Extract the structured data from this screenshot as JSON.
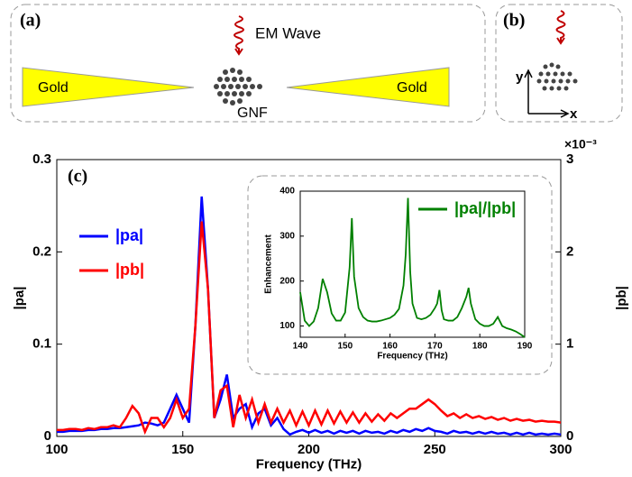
{
  "diagram": {
    "panel_a_label": "(a)",
    "em_wave": "EM Wave",
    "gold_left": "Gold",
    "gold_right": "Gold",
    "gnf": "GNF",
    "panel_b_label": "(b)",
    "axis_y": "y",
    "axis_x": "x"
  },
  "chart_data": [
    {
      "type": "line",
      "panel_label": "(c)",
      "xlabel": "Frequency (THz)",
      "ylabel": "|pa|",
      "y2label": "|pb|",
      "y2_multiplier": "×10⁻³",
      "xlim": [
        100,
        300
      ],
      "xticks": [
        100,
        150,
        200,
        250,
        300
      ],
      "ylim": [
        0,
        0.3
      ],
      "yticks": [
        0,
        0.1,
        0.2,
        0.3
      ],
      "y2lim": [
        0,
        3
      ],
      "y2ticks": [
        0,
        1,
        2,
        3
      ],
      "legend": "left",
      "x": [
        100,
        102.5,
        105,
        107.5,
        110,
        112.5,
        115,
        117.5,
        120,
        122.5,
        125,
        127.5,
        130,
        132.5,
        135,
        137.5,
        140,
        142.5,
        145,
        147.5,
        150,
        152.5,
        155,
        157.5,
        160,
        162.5,
        165,
        167.5,
        170,
        172.5,
        175,
        177.5,
        180,
        182.5,
        185,
        187.5,
        190,
        192.5,
        195,
        197.5,
        200,
        202.5,
        205,
        207.5,
        210,
        212.5,
        215,
        217.5,
        220,
        222.5,
        225,
        227.5,
        230,
        232.5,
        235,
        237.5,
        240,
        242.5,
        245,
        247.5,
        250,
        252.5,
        255,
        257.5,
        260,
        262.5,
        265,
        267.5,
        270,
        272.5,
        275,
        277.5,
        280,
        282.5,
        285,
        287.5,
        290,
        292.5,
        295,
        297.5,
        300
      ],
      "series": [
        {
          "name": "|pa|",
          "color": "#0000ff",
          "axis": "y",
          "values": [
            0.005,
            0.005,
            0.006,
            0.006,
            0.006,
            0.007,
            0.007,
            0.008,
            0.008,
            0.009,
            0.009,
            0.01,
            0.011,
            0.012,
            0.015,
            0.014,
            0.012,
            0.015,
            0.03,
            0.045,
            0.03,
            0.015,
            0.12,
            0.26,
            0.16,
            0.02,
            0.04,
            0.067,
            0.02,
            0.03,
            0.035,
            0.01,
            0.025,
            0.03,
            0.012,
            0.02,
            0.008,
            0.002,
            0.005,
            0.007,
            0.004,
            0.007,
            0.004,
            0.006,
            0.003,
            0.006,
            0.004,
            0.006,
            0.003,
            0.006,
            0.004,
            0.005,
            0.003,
            0.006,
            0.004,
            0.007,
            0.005,
            0.008,
            0.006,
            0.009,
            0.006,
            0.005,
            0.003,
            0.006,
            0.004,
            0.005,
            0.003,
            0.005,
            0.003,
            0.005,
            0.003,
            0.004,
            0.002,
            0.004,
            0.002,
            0.004,
            0.002,
            0.003,
            0.002,
            0.003,
            0.002
          ]
        },
        {
          "name": "|pb|",
          "color": "#ff0000",
          "axis": "y2",
          "values": [
            0.07,
            0.07,
            0.08,
            0.08,
            0.07,
            0.09,
            0.08,
            0.1,
            0.1,
            0.12,
            0.1,
            0.2,
            0.33,
            0.25,
            0.05,
            0.2,
            0.2,
            0.1,
            0.2,
            0.4,
            0.2,
            0.3,
            1.2,
            2.33,
            1.6,
            0.2,
            0.5,
            0.55,
            0.1,
            0.45,
            0.2,
            0.4,
            0.15,
            0.35,
            0.15,
            0.3,
            0.15,
            0.28,
            0.12,
            0.27,
            0.12,
            0.28,
            0.13,
            0.28,
            0.14,
            0.27,
            0.15,
            0.26,
            0.15,
            0.25,
            0.16,
            0.24,
            0.17,
            0.25,
            0.2,
            0.25,
            0.3,
            0.3,
            0.35,
            0.4,
            0.35,
            0.28,
            0.22,
            0.25,
            0.2,
            0.24,
            0.2,
            0.22,
            0.19,
            0.21,
            0.18,
            0.2,
            0.17,
            0.19,
            0.17,
            0.18,
            0.16,
            0.17,
            0.16,
            0.16,
            0.15
          ]
        }
      ]
    },
    {
      "type": "line",
      "xlabel": "Frequency (THz)",
      "ylabel": "Enhancement",
      "xlim": [
        140,
        190
      ],
      "xticks": [
        140,
        150,
        160,
        170,
        180,
        190
      ],
      "ylim": [
        75,
        400
      ],
      "yticks": [
        100,
        200,
        300,
        400
      ],
      "x": [
        140,
        141,
        142,
        143,
        144,
        145,
        146,
        147,
        148,
        149,
        150,
        151,
        151.5,
        152,
        153,
        154,
        155,
        156,
        157,
        158,
        159,
        160,
        161,
        162,
        163,
        163.5,
        164,
        164.5,
        165,
        166,
        167,
        168,
        169,
        170,
        170.5,
        171,
        171.5,
        172,
        173,
        174,
        175,
        176,
        177,
        177.5,
        178,
        179,
        180,
        181,
        182,
        183,
        184,
        185,
        186,
        187,
        188,
        189,
        190
      ],
      "series": [
        {
          "name": "|pa|/|pb|",
          "color": "#008000",
          "values": [
            175,
            112,
            100,
            110,
            140,
            205,
            175,
            128,
            112,
            112,
            130,
            230,
            340,
            210,
            140,
            120,
            112,
            110,
            110,
            112,
            115,
            118,
            125,
            138,
            190,
            260,
            385,
            220,
            150,
            118,
            115,
            118,
            125,
            140,
            150,
            180,
            135,
            115,
            112,
            112,
            120,
            140,
            165,
            185,
            150,
            115,
            105,
            100,
            100,
            105,
            120,
            100,
            95,
            92,
            88,
            82,
            75
          ]
        }
      ]
    }
  ]
}
